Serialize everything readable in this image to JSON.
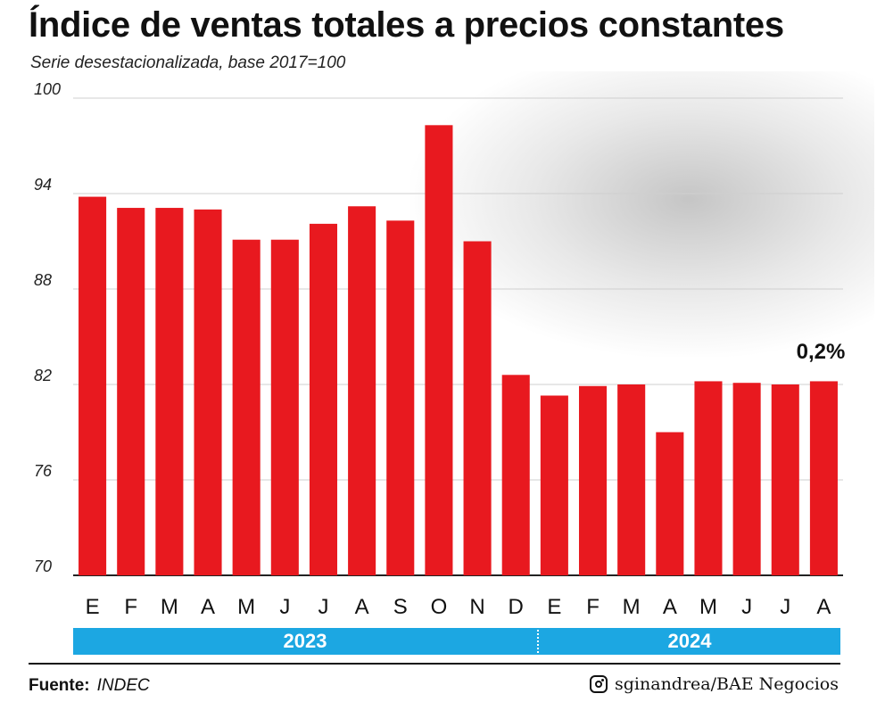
{
  "title": "Índice de ventas totales a precios constantes",
  "subtitle": "Serie desestacionalizada, base 2017=100",
  "chart_data": {
    "type": "bar",
    "categories": [
      "E",
      "F",
      "M",
      "A",
      "M",
      "J",
      "J",
      "A",
      "S",
      "O",
      "N",
      "D",
      "E",
      "F",
      "M",
      "A",
      "M",
      "J",
      "J",
      "A"
    ],
    "values": [
      93.8,
      93.1,
      93.1,
      93.0,
      91.1,
      91.1,
      92.1,
      93.2,
      92.3,
      98.3,
      91.0,
      82.6,
      81.3,
      81.9,
      82.0,
      79.0,
      82.2,
      82.1,
      82.0,
      82.2
    ],
    "ylim": [
      70,
      100
    ],
    "yticks": [
      70,
      76,
      82,
      88,
      94,
      100
    ],
    "grid": true,
    "bar_color": "#e8191f",
    "annotation": "0,2%",
    "years": [
      {
        "label": "2023",
        "months": 12
      },
      {
        "label": "2024",
        "months": 8
      }
    ],
    "band_color": "#1ca7e2"
  },
  "footer": {
    "source_label": "Fuente:",
    "source_value": "INDEC",
    "icon": "instagram-icon",
    "credit": "sginandrea/BAE Negocios"
  }
}
